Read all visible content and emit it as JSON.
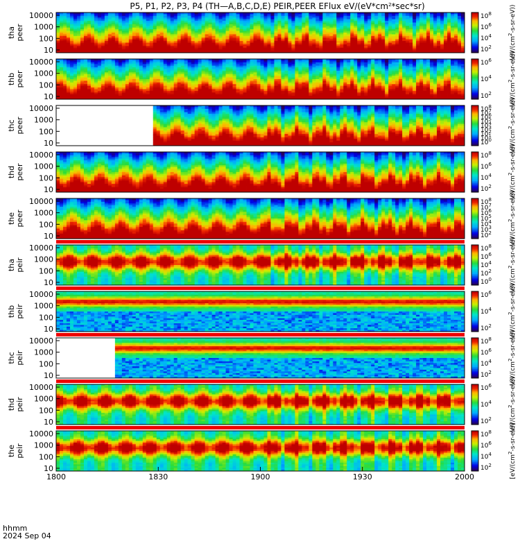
{
  "chart_data": {
    "type": "heatmap",
    "title": "P5, P1, P2, P3, P4 (TH—A,B,C,D,E) PEIR,PEER EFlux eV/(eV*cm^2*sec*sr)",
    "time_axis": {
      "ticks": [
        "1800",
        "1830",
        "1900",
        "1930",
        "2000"
      ],
      "corner_label_1": "hhmm",
      "corner_label_2": "2024 Sep 04"
    },
    "y_ticks": [
      "10000",
      "1000",
      "100",
      "10"
    ],
    "y_scale": "log",
    "colorbar_scale": "log",
    "panels": [
      {
        "probe": "tha",
        "product": "peer",
        "colorbar_ticks": [
          "10^8",
          "10^6",
          "10^4",
          "10^2"
        ],
        "colorbar_label": "(eV/(cm^2-s-sr-eV))"
      },
      {
        "probe": "thb",
        "product": "peer",
        "colorbar_ticks": [
          "10^6",
          "10^4",
          "10^2"
        ],
        "colorbar_label": "(eV/(cm^2-s-sr-eV))"
      },
      {
        "probe": "thc",
        "product": "peer",
        "colorbar_ticks": [
          "10^8",
          "10^7",
          "10^6",
          "10^5",
          "10^4",
          "10^3",
          "10^2",
          "10^1",
          "10^0"
        ],
        "colorbar_label": "(eV/(cm^2-s-sr-eV))"
      },
      {
        "probe": "thd",
        "product": "peer",
        "colorbar_ticks": [
          "10^8",
          "10^6",
          "10^4",
          "10^2"
        ],
        "colorbar_label": "(eV/(cm^2-s-sr-eV))"
      },
      {
        "probe": "the",
        "product": "peer",
        "colorbar_ticks": [
          "10^8",
          "10^7",
          "10^6",
          "10^5",
          "10^4",
          "10^3",
          "10^2"
        ],
        "colorbar_label": "(eV/(cm^2-s-sr-eV))"
      },
      {
        "probe": "tha",
        "product": "peir",
        "colorbar_ticks": [
          "10^8",
          "10^6",
          "10^4",
          "10^2",
          "10^0"
        ],
        "colorbar_label": "(eV/(cm^2-s-sr-eV))"
      },
      {
        "probe": "thb",
        "product": "peir",
        "colorbar_ticks": [
          "10^6",
          "10^4",
          "10^2"
        ],
        "colorbar_label": "(eV/(cm^2-s-sr-eV))"
      },
      {
        "probe": "thc",
        "product": "peir",
        "colorbar_ticks": [
          "10^8",
          "10^6",
          "10^4",
          "10^2"
        ],
        "colorbar_label": "(eV/(cm^2-s-sr-eV))"
      },
      {
        "probe": "thd",
        "product": "peir",
        "colorbar_ticks": [
          "10^6",
          "10^4",
          "10^2"
        ],
        "colorbar_label": "(eV/(cm^2-s-sr-eV))"
      },
      {
        "probe": "the",
        "product": "peir",
        "colorbar_ticks": [
          "10^8",
          "10^6",
          "10^4",
          "10^2"
        ],
        "colorbar_label": "[eV/(cm^2-s-sr-eV)]"
      }
    ]
  }
}
